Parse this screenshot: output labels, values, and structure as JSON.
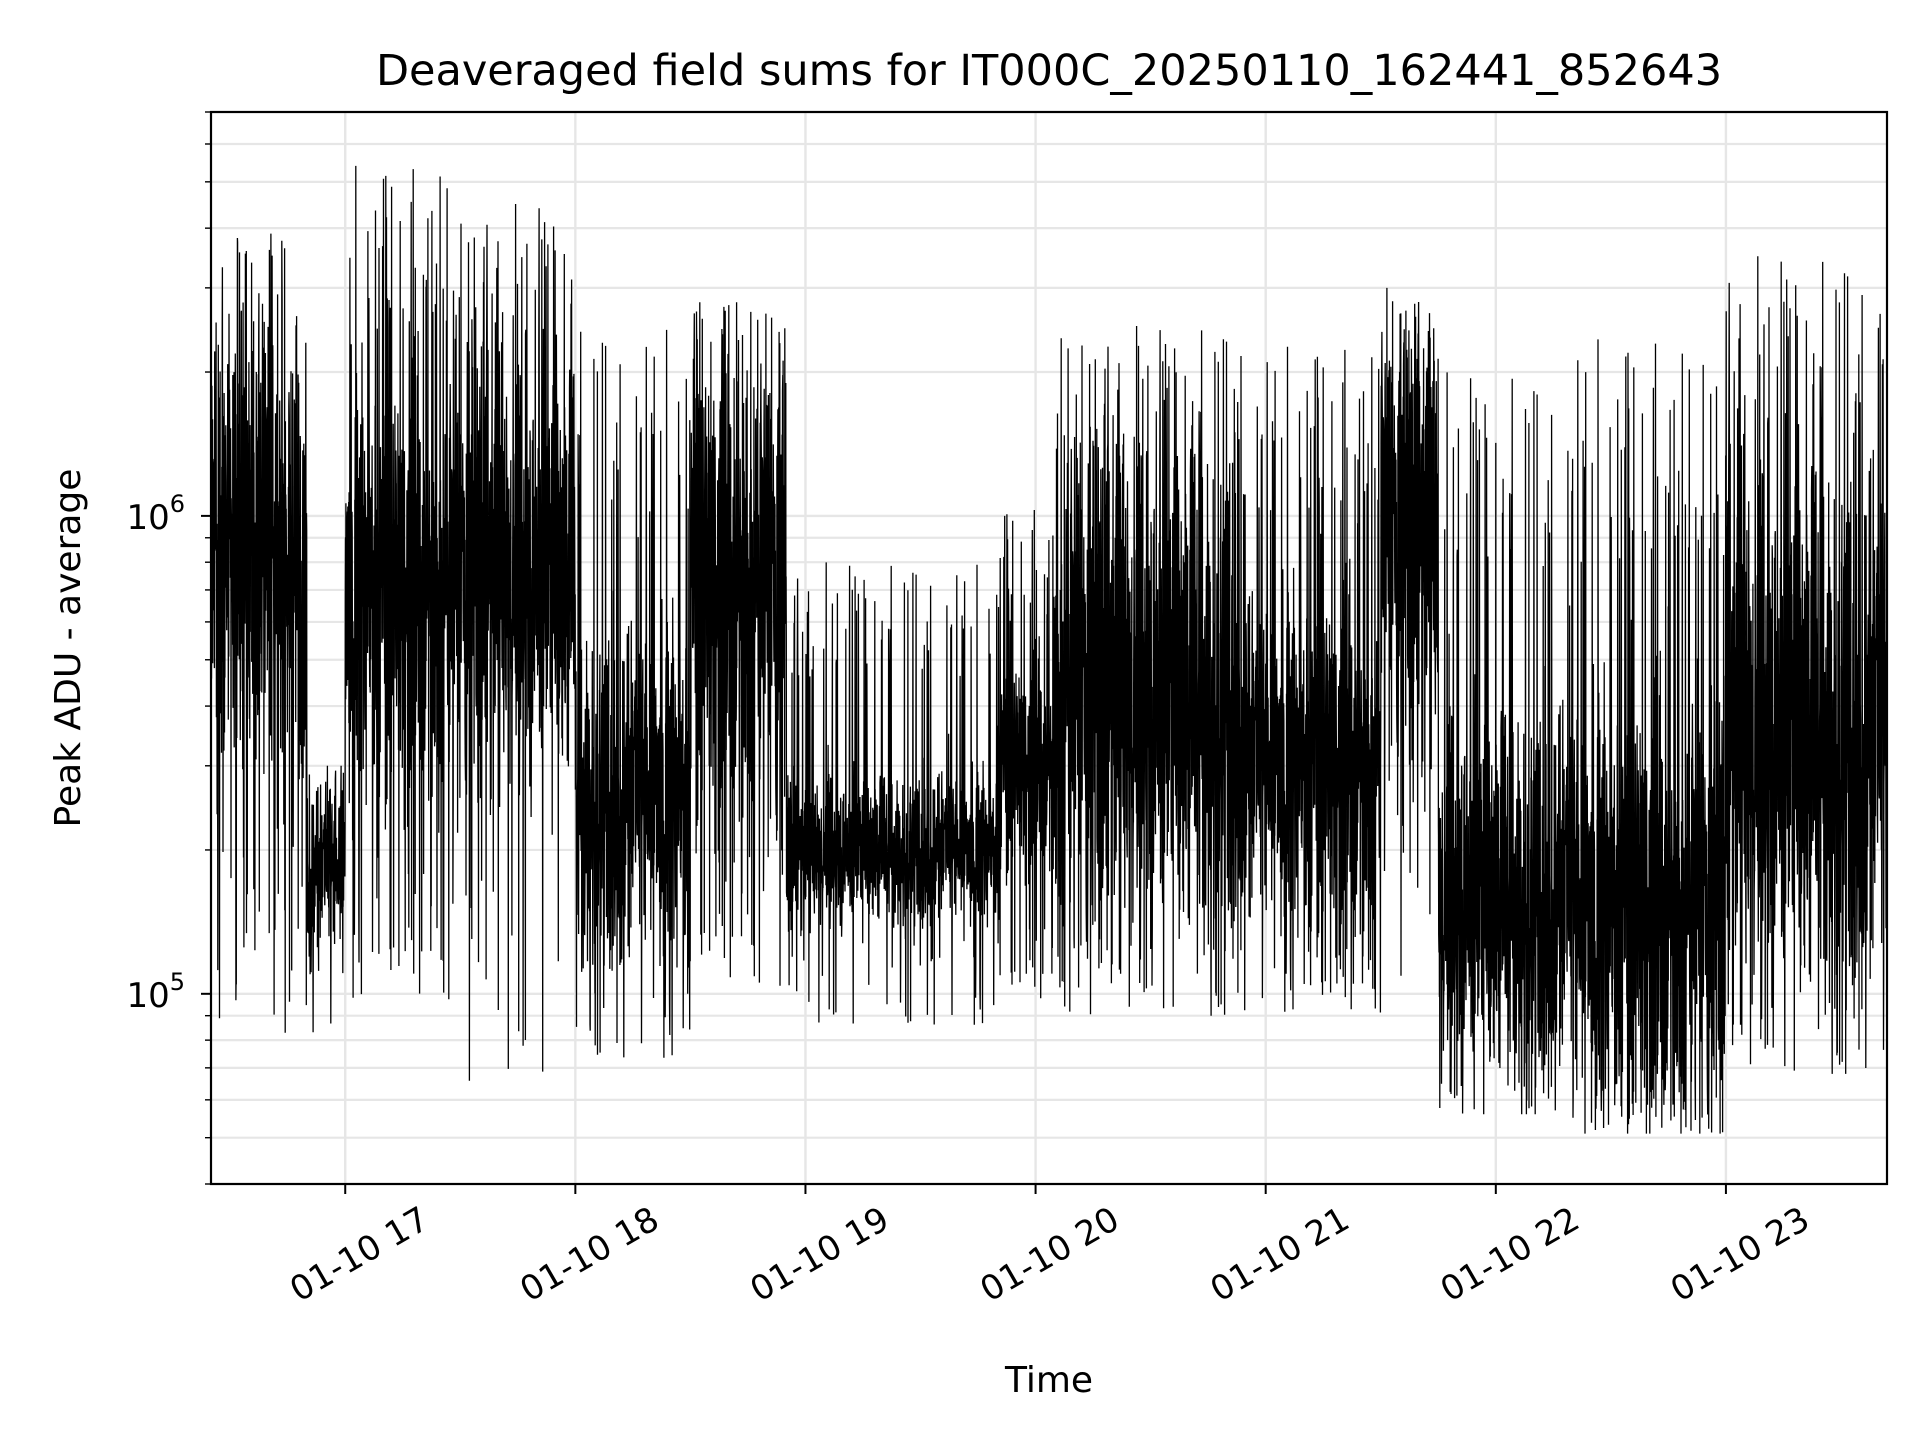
{
  "chart_data": {
    "type": "line",
    "scale": "log-y",
    "title": "Deaveraged field sums for IT000C_20250110_162441_852643",
    "xlabel": "Time",
    "ylabel": "Peak ADU - average",
    "x_ticks": [
      {
        "t": "2025-01-10T17:00",
        "label": "01-10 17"
      },
      {
        "t": "2025-01-10T18:00",
        "label": "01-10 18"
      },
      {
        "t": "2025-01-10T19:00",
        "label": "01-10 19"
      },
      {
        "t": "2025-01-10T20:00",
        "label": "01-10 20"
      },
      {
        "t": "2025-01-10T21:00",
        "label": "01-10 21"
      },
      {
        "t": "2025-01-10T22:00",
        "label": "01-10 22"
      },
      {
        "t": "2025-01-10T23:00",
        "label": "01-10 23"
      }
    ],
    "y_ticks": [
      {
        "value": 100000,
        "base": "10",
        "exp": "5"
      },
      {
        "value": 1000000,
        "base": "10",
        "exp": "6"
      }
    ],
    "xlim": [
      "2025-01-10T16:25",
      "2025-01-10T23:42"
    ],
    "ylim": [
      40000,
      7000000
    ],
    "grid": "on (major and minor)",
    "series": [
      {
        "color": "#000000",
        "segments": [
          {
            "start": "2025-01-10T16:25",
            "end": "2025-01-10T16:50",
            "median": 850000,
            "spread": 0.5,
            "max": 4000000,
            "min": 80000
          },
          {
            "start": "2025-01-10T16:50",
            "end": "2025-01-10T17:00",
            "median": 180000,
            "spread": 0.2,
            "max": 300000,
            "min": 82000
          },
          {
            "start": "2025-01-10T17:00",
            "end": "2025-01-10T17:30",
            "median": 700000,
            "spread": 0.5,
            "max": 5500000,
            "min": 95000
          },
          {
            "start": "2025-01-10T17:30",
            "end": "2025-01-10T18:00",
            "median": 750000,
            "spread": 0.5,
            "max": 4500000,
            "min": 65000
          },
          {
            "start": "2025-01-10T18:00",
            "end": "2025-01-10T18:30",
            "median": 260000,
            "spread": 0.4,
            "max": 2500000,
            "min": 72000
          },
          {
            "start": "2025-01-10T18:30",
            "end": "2025-01-10T18:55",
            "median": 700000,
            "spread": 0.55,
            "max": 2800000,
            "min": 103000
          },
          {
            "start": "2025-01-10T18:55",
            "end": "2025-01-10T19:50",
            "median": 200000,
            "spread": 0.18,
            "max": 800000,
            "min": 85000
          },
          {
            "start": "2025-01-10T19:50",
            "end": "2025-01-10T20:05",
            "median": 300000,
            "spread": 0.25,
            "max": 1050000,
            "min": 95000
          },
          {
            "start": "2025-01-10T20:05",
            "end": "2025-01-10T20:55",
            "median": 420000,
            "spread": 0.6,
            "max": 2500000,
            "min": 90000
          },
          {
            "start": "2025-01-10T20:55",
            "end": "2025-01-10T21:30",
            "median": 300000,
            "spread": 0.4,
            "max": 2300000,
            "min": 90000
          },
          {
            "start": "2025-01-10T21:30",
            "end": "2025-01-10T21:45",
            "median": 900000,
            "spread": 0.5,
            "max": 3000000,
            "min": 108000
          },
          {
            "start": "2025-01-10T21:45",
            "end": "2025-01-10T22:20",
            "median": 160000,
            "spread": 0.45,
            "max": 2000000,
            "min": 56000
          },
          {
            "start": "2025-01-10T22:20",
            "end": "2025-01-10T23:00",
            "median": 150000,
            "spread": 0.5,
            "max": 2400000,
            "min": 51000
          },
          {
            "start": "2025-01-10T23:00",
            "end": "2025-01-10T23:42",
            "median": 350000,
            "spread": 0.65,
            "max": 3500000,
            "min": 68000
          }
        ]
      }
    ]
  }
}
